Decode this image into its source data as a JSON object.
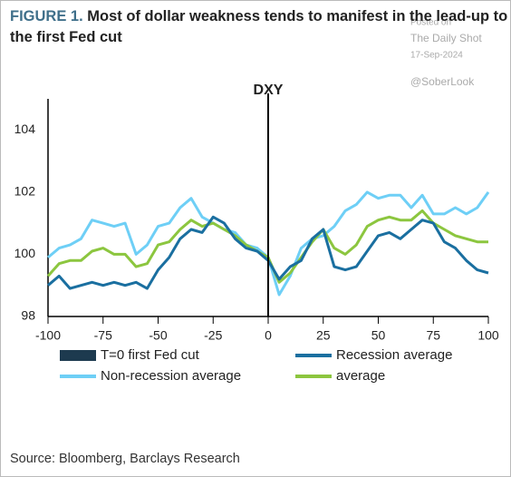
{
  "chart_data": {
    "type": "line",
    "title_prefix": "FIGURE 1.",
    "title": "Most of dollar weakness tends to manifest in the lead-up to the first Fed cut",
    "annotation": "DXY",
    "watermark": [
      "Posted on",
      "The Daily Shot",
      "17-Sep-2024",
      "@SoberLook"
    ],
    "source": "Source: Bloomberg, Barclays Research",
    "event_marker": {
      "x": 0,
      "label": "T=0 first Fed cut",
      "color": "#1d3a4f"
    },
    "x": [
      -100,
      -95,
      -90,
      -85,
      -80,
      -75,
      -70,
      -65,
      -60,
      -55,
      -50,
      -45,
      -40,
      -35,
      -30,
      -25,
      -20,
      -15,
      -10,
      -5,
      0,
      5,
      10,
      15,
      20,
      25,
      30,
      35,
      40,
      45,
      50,
      55,
      60,
      65,
      70,
      75,
      80,
      85,
      90,
      95,
      100
    ],
    "series": [
      {
        "name": "Recession average",
        "color": "#1a6fa0",
        "values": [
          99.0,
          99.3,
          98.9,
          99.0,
          99.1,
          99.0,
          99.1,
          99.0,
          99.1,
          98.9,
          99.5,
          99.9,
          100.5,
          100.8,
          100.7,
          101.2,
          101.0,
          100.5,
          100.2,
          100.1,
          99.8,
          99.2,
          99.6,
          99.8,
          100.5,
          100.8,
          99.6,
          99.5,
          99.6,
          100.1,
          100.6,
          100.7,
          100.5,
          100.8,
          101.1,
          101.0,
          100.4,
          100.2,
          99.8,
          99.5,
          99.4
        ]
      },
      {
        "name": "Non-recession average",
        "color": "#6ecff6",
        "values": [
          99.9,
          100.2,
          100.3,
          100.5,
          101.1,
          101.0,
          100.9,
          101.0,
          100.0,
          100.3,
          100.9,
          101.0,
          101.5,
          101.8,
          101.2,
          101.0,
          100.8,
          100.7,
          100.3,
          100.2,
          99.9,
          98.7,
          99.3,
          100.2,
          100.5,
          100.6,
          100.9,
          101.4,
          101.6,
          102.0,
          101.8,
          101.9,
          101.9,
          101.5,
          101.9,
          101.3,
          101.3,
          101.5,
          101.3,
          101.5,
          102.0
        ]
      },
      {
        "name": "average",
        "color": "#8cc63f",
        "values": [
          99.3,
          99.7,
          99.8,
          99.8,
          100.1,
          100.2,
          100.0,
          100.0,
          99.6,
          99.7,
          100.3,
          100.4,
          100.8,
          101.1,
          100.9,
          101.0,
          100.8,
          100.6,
          100.3,
          100.1,
          99.9,
          99.1,
          99.4,
          99.9,
          100.4,
          100.8,
          100.2,
          100.0,
          100.3,
          100.9,
          101.1,
          101.2,
          101.1,
          101.1,
          101.4,
          101.0,
          100.8,
          100.6,
          100.5,
          100.4,
          100.4
        ]
      }
    ],
    "xlim": [
      -100,
      100
    ],
    "xticks": [
      -100,
      -75,
      -50,
      -25,
      0,
      25,
      50,
      75,
      100
    ],
    "ylim": [
      98,
      105
    ],
    "yticks": [
      98,
      100,
      102,
      104
    ],
    "grid": false
  }
}
